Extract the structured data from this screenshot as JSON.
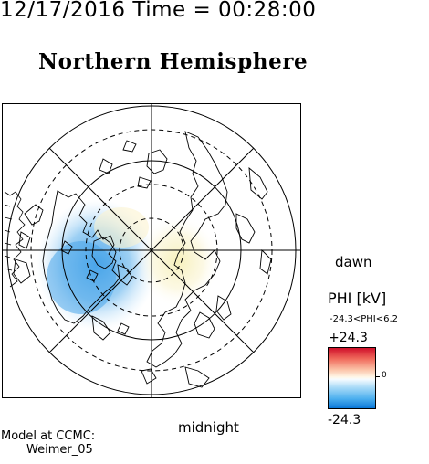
{
  "header": {
    "timestamp": "12/17/2016 Time = 00:28:00",
    "title": "Northern Hemisphere"
  },
  "map": {
    "projection": "polar",
    "hemisphere": "north",
    "orientation_labels": {
      "right": "dawn",
      "bottom": "midnight"
    }
  },
  "colorbar": {
    "label": "PHI [kV]",
    "range_text": "-24.3<PHI<6.2",
    "max_label": "+24.3",
    "min_label": "-24.3",
    "zero_label": "0",
    "colors": {
      "max": "#d0102a",
      "mid": "#ffffff",
      "min": "#0a78d8"
    }
  },
  "credit": {
    "line1": "Model at CCMC:",
    "line2": "Weimer_05"
  }
}
